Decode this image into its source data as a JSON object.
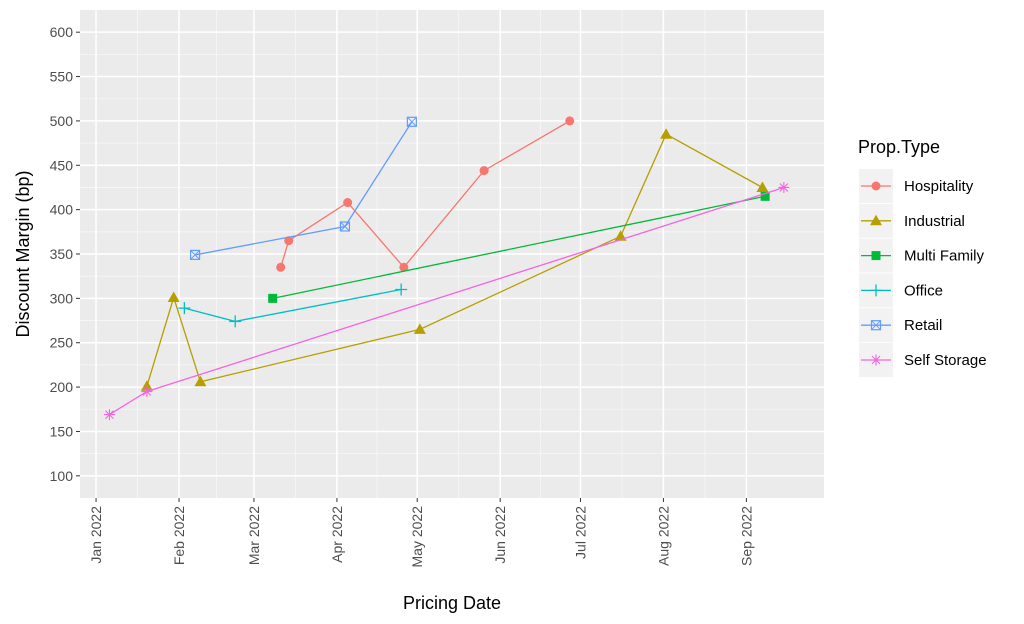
{
  "chart_data": {
    "type": "line",
    "xlabel": "Pricing Date",
    "ylabel": "Discount Margin (bp)",
    "ylim": [
      75,
      625
    ],
    "yticks": [
      100,
      150,
      200,
      250,
      300,
      350,
      400,
      450,
      500,
      550,
      600
    ],
    "xlim": [
      "2021-12-26",
      "2022-09-30"
    ],
    "xticks": [
      {
        "date": "2022-01-01",
        "label": "Jan 2022"
      },
      {
        "date": "2022-02-01",
        "label": "Feb 2022"
      },
      {
        "date": "2022-03-01",
        "label": "Mar 2022"
      },
      {
        "date": "2022-04-01",
        "label": "Apr 2022"
      },
      {
        "date": "2022-05-01",
        "label": "May 2022"
      },
      {
        "date": "2022-06-01",
        "label": "Jun 2022"
      },
      {
        "date": "2022-07-01",
        "label": "Jul 2022"
      },
      {
        "date": "2022-08-01",
        "label": "Aug 2022"
      },
      {
        "date": "2022-09-01",
        "label": "Sep 2022"
      }
    ],
    "grid": true,
    "legend_title": "Prop.Type",
    "legend_position": "right",
    "series": [
      {
        "name": "Hospitality",
        "color": "#F8766D",
        "marker": "circle",
        "points": [
          [
            "2022-03-11",
            335
          ],
          [
            "2022-03-14",
            365
          ],
          [
            "2022-04-05",
            408
          ],
          [
            "2022-04-26",
            335
          ],
          [
            "2022-05-26",
            444
          ],
          [
            "2022-06-27",
            500
          ]
        ]
      },
      {
        "name": "Industrial",
        "color": "#B79F00",
        "marker": "triangle",
        "points": [
          [
            "2022-01-20",
            201
          ],
          [
            "2022-01-30",
            301
          ],
          [
            "2022-02-09",
            206
          ],
          [
            "2022-05-02",
            265
          ],
          [
            "2022-07-16",
            370
          ],
          [
            "2022-08-02",
            485
          ],
          [
            "2022-09-07",
            425
          ]
        ]
      },
      {
        "name": "Multi Family",
        "color": "#00BA38",
        "marker": "square",
        "points": [
          [
            "2022-03-08",
            300
          ],
          [
            "2022-09-08",
            415
          ]
        ]
      },
      {
        "name": "Office",
        "color": "#00BFC4",
        "marker": "plus",
        "points": [
          [
            "2022-02-03",
            289
          ],
          [
            "2022-02-22",
            274
          ],
          [
            "2022-04-25",
            310
          ]
        ]
      },
      {
        "name": "Retail",
        "color": "#619CFF",
        "marker": "box-x",
        "points": [
          [
            "2022-02-07",
            349
          ],
          [
            "2022-04-04",
            381
          ],
          [
            "2022-04-29",
            499
          ]
        ]
      },
      {
        "name": "Self Storage",
        "color": "#F564E3",
        "marker": "asterisk",
        "points": [
          [
            "2022-01-06",
            169
          ],
          [
            "2022-01-20",
            195
          ],
          [
            "2022-09-15",
            425
          ]
        ]
      }
    ]
  }
}
